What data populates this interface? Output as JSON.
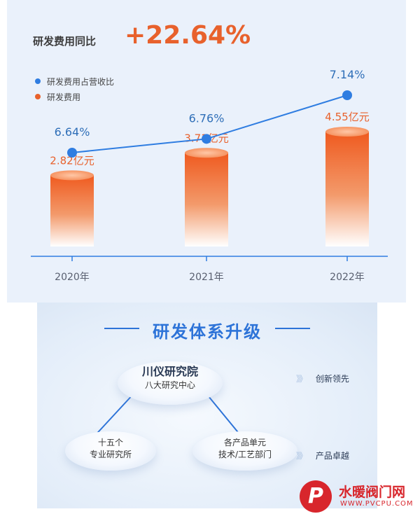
{
  "headline": {
    "label": "研发费用同比",
    "value": "+22.64%"
  },
  "colors": {
    "ratio": "#2f7de1",
    "expense": "#e8612c",
    "title_blue": "#2d73d8"
  },
  "chart_data": {
    "type": "bar+line",
    "categories": [
      "2020年",
      "2021年",
      "2022年"
    ],
    "series": [
      {
        "name": "研发费用",
        "type": "bar",
        "values": [
          2.82,
          3.71,
          4.55
        ],
        "labels": [
          "2.82亿元",
          "3.71亿元",
          "4.55亿元"
        ]
      },
      {
        "name": "研发费用占营收比",
        "type": "line",
        "values": [
          6.64,
          6.76,
          7.14
        ],
        "labels": [
          "6.64%",
          "6.76%",
          "7.14%"
        ]
      }
    ],
    "legend": [
      "研发费用占营收比",
      "研发费用"
    ],
    "legend_position": "top-left"
  },
  "system": {
    "title": "研发体系升级",
    "center": {
      "main": "川仪研究院",
      "sub": "八大研究中心"
    },
    "left": {
      "line1": "十五个",
      "line2": "专业研究所"
    },
    "right": {
      "line1": "各产品单元",
      "line2": "技术/工艺部门"
    },
    "tag_top": "创新领先",
    "tag_bottom": "产品卓越",
    "chevron": "》》"
  },
  "watermark": {
    "logo": "P",
    "name": "水暖阀门网",
    "url": "WWW.PVCPU.COM"
  }
}
